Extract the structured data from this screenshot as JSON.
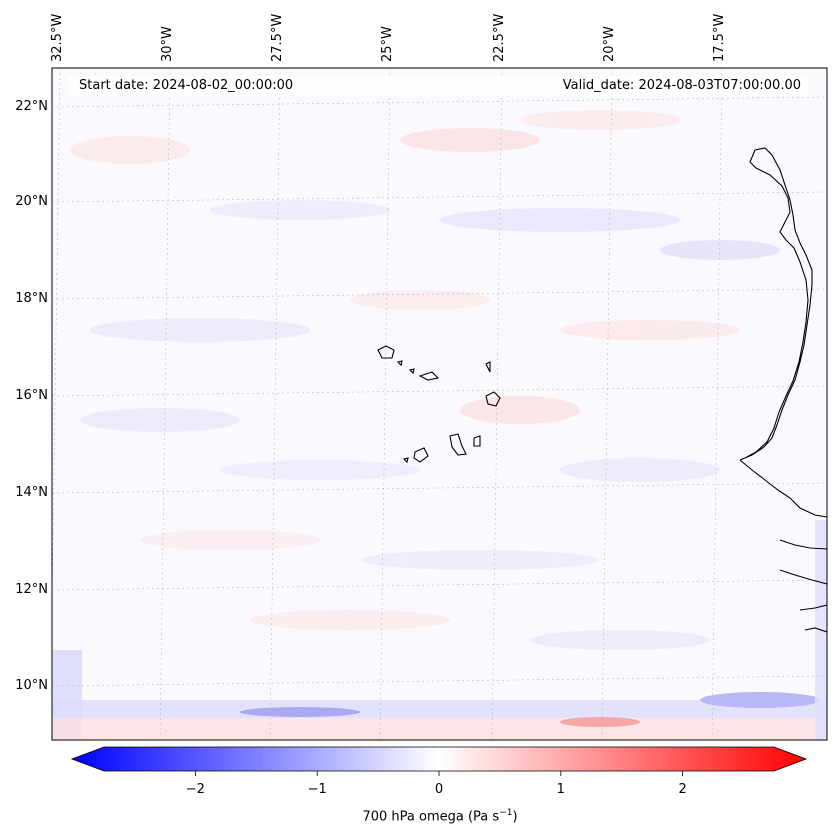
{
  "map": {
    "start_label": "Start date: 2024-08-02_00:00:00",
    "valid_label": "Valid_date: 2024-08-03T07:00:00.00",
    "lon_labels": [
      "32.5°W",
      "30°W",
      "27.5°W",
      "25°W",
      "22.5°W",
      "20°W",
      "17.5°W"
    ],
    "lat_labels": [
      "22°N",
      "20°N",
      "18°N",
      "16°N",
      "14°N",
      "12°N",
      "10°N"
    ],
    "variable": "700 hPa omega",
    "units": "Pa s",
    "units_exponent": "−1"
  },
  "colorbar": {
    "ticks": [
      "−2",
      "−1",
      "0",
      "1",
      "2"
    ],
    "min": -2.75,
    "max": 2.75,
    "cmap": "bwr",
    "low_color": "#0000ff",
    "mid_color": "#ffffff",
    "high_color": "#ff0000"
  },
  "colors": {
    "coast": "#000000",
    "grid": "#b0b0b0"
  }
}
